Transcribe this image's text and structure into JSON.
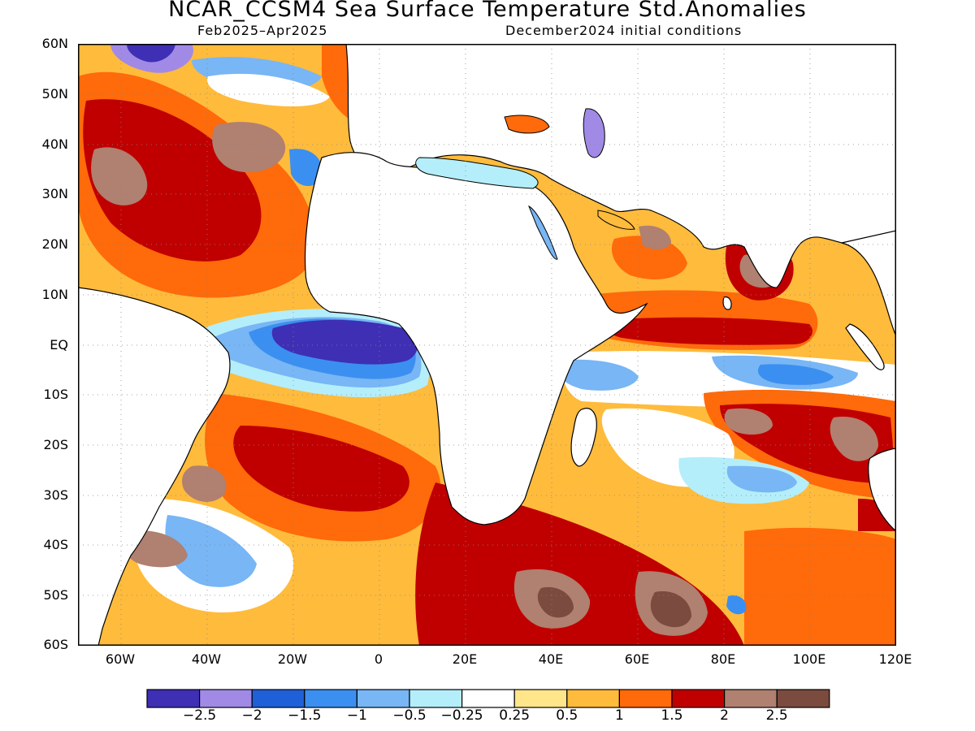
{
  "header": {
    "title": "NCAR_CCSM4 Sea Surface Temperature Std.Anomalies",
    "period": "Feb2025–Apr2025",
    "init": "December2024 initial conditions"
  },
  "axes": {
    "lat_labels": [
      "60N",
      "50N",
      "40N",
      "30N",
      "20N",
      "10N",
      "EQ",
      "10S",
      "20S",
      "30S",
      "40S",
      "50S",
      "60S"
    ],
    "lon_labels": [
      "60W",
      "40W",
      "20W",
      "0",
      "20E",
      "40E",
      "60E",
      "80E",
      "100E",
      "120E"
    ]
  },
  "map": {
    "lat_range": [
      -60,
      60
    ],
    "lon_range": [
      -70,
      120
    ],
    "grid": true,
    "land_color": "#ffffff",
    "coastline_color": "#000000"
  },
  "colorbar": {
    "colors": [
      "#3e2fb4",
      "#a08ae6",
      "#1f5fd8",
      "#3b8ff0",
      "#78b6f5",
      "#b4eefa",
      "#ffffff",
      "#ffe68a",
      "#ffbb3c",
      "#ff6a0a",
      "#c00000",
      "#b08070",
      "#7a4b3e"
    ],
    "labels": [
      "−2.5",
      "−2",
      "−1.5",
      "−1",
      "−0.5",
      "−0.25",
      "0.25",
      "0.5",
      "1",
      "1.5",
      "2",
      "2.5"
    ]
  }
}
